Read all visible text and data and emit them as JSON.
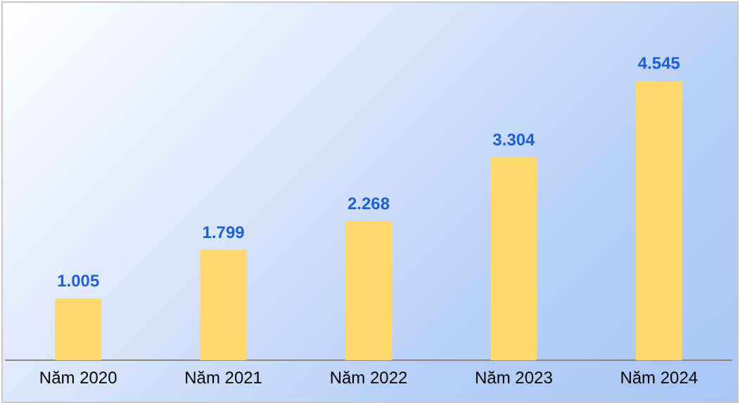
{
  "chart_data": {
    "type": "bar",
    "categories": [
      "Năm 2020",
      "Năm 2021",
      "Năm 2022",
      "Năm 2023",
      "Năm 2024"
    ],
    "values": [
      1.005,
      1.799,
      2.268,
      3.304,
      4.545
    ],
    "color": "#ffd86b",
    "data_labels": true,
    "grid": false,
    "legend": false,
    "tick_labels": "x"
  }
}
